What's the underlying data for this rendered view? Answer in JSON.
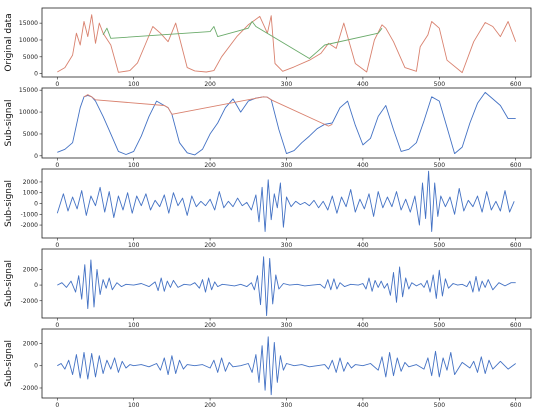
{
  "chart_data": [
    {
      "type": "line",
      "ylabel": "Original data",
      "xlim": [
        -20,
        620
      ],
      "ylim": [
        -1000,
        19500
      ],
      "xticks": [
        0,
        100,
        200,
        300,
        400,
        500,
        600
      ],
      "yticks": [
        0,
        5000,
        10000,
        15000
      ],
      "series": [
        {
          "color": "#d9826f",
          "x": [
            0,
            10,
            20,
            25,
            30,
            35,
            40,
            45,
            50,
            55,
            60,
            70,
            80,
            95,
            105,
            115,
            125,
            135,
            145,
            155,
            170,
            180,
            195,
            205,
            215,
            235,
            250,
            265,
            275,
            280,
            285,
            295,
            310,
            330,
            345,
            355,
            365,
            375,
            390,
            405,
            415,
            425,
            430,
            440,
            455,
            470,
            475,
            485,
            490,
            500,
            510,
            530,
            545,
            560,
            570,
            580,
            590,
            600
          ],
          "y": [
            500,
            1800,
            5500,
            12000,
            8500,
            15500,
            11000,
            17500,
            9000,
            15000,
            12000,
            8500,
            400,
            900,
            3200,
            8500,
            14000,
            12000,
            9500,
            15000,
            1800,
            800,
            500,
            900,
            5000,
            11000,
            14500,
            17000,
            12000,
            17200,
            3000,
            700,
            2000,
            4000,
            6000,
            9000,
            7500,
            15000,
            3000,
            500,
            10000,
            14500,
            13500,
            9500,
            1800,
            700,
            8000,
            11500,
            15500,
            13500,
            4000,
            300,
            9500,
            15200,
            14000,
            11000,
            15500,
            9500
          ]
        },
        {
          "color": "#6bab6b",
          "x": [
            60,
            65,
            70,
            200,
            205,
            210,
            250,
            255,
            260,
            330,
            340,
            350,
            420,
            425
          ],
          "y": [
            11500,
            13500,
            10500,
            12500,
            14000,
            11000,
            13500,
            15500,
            14000,
            4500,
            6500,
            8500,
            12000,
            13500
          ]
        }
      ]
    },
    {
      "type": "line",
      "ylabel": "Sub-signal",
      "xlim": [
        -20,
        620
      ],
      "ylim": [
        -500,
        15500
      ],
      "xticks": [
        0,
        100,
        200,
        300,
        400,
        500,
        600
      ],
      "yticks": [
        0,
        5000,
        10000,
        15000
      ],
      "series": [
        {
          "color": "#4472c4",
          "x": [
            0,
            10,
            20,
            30,
            35,
            40,
            45,
            50,
            60,
            70,
            80,
            90,
            100,
            110,
            120,
            130,
            140,
            145,
            150,
            160,
            170,
            180,
            190,
            200,
            210,
            220,
            230,
            240,
            250,
            260,
            270,
            275,
            280,
            290,
            300,
            310,
            320,
            330,
            340,
            350,
            360,
            370,
            380,
            390,
            400,
            410,
            420,
            430,
            440,
            450,
            460,
            470,
            480,
            490,
            500,
            510,
            520,
            530,
            540,
            550,
            560,
            570,
            580,
            590,
            600
          ],
          "y": [
            800,
            1500,
            3000,
            11000,
            13500,
            13800,
            13500,
            12500,
            9000,
            5000,
            1000,
            300,
            1000,
            4500,
            9000,
            12500,
            11500,
            11000,
            9500,
            3000,
            700,
            200,
            1500,
            5000,
            7500,
            11000,
            13000,
            10000,
            12500,
            13200,
            13500,
            13400,
            12800,
            6000,
            500,
            1200,
            3000,
            4500,
            6200,
            7200,
            7500,
            11000,
            12500,
            7000,
            2500,
            4000,
            9000,
            11500,
            6000,
            1000,
            1500,
            3000,
            8000,
            13500,
            12500,
            6500,
            500,
            2000,
            7500,
            12000,
            14500,
            13000,
            11500,
            8500,
            8500
          ]
        },
        {
          "color": "#d9826f",
          "x": [
            35,
            40,
            45,
            50,
            140,
            145,
            150,
            270,
            275,
            280,
            355,
            360
          ],
          "y": [
            13500,
            14000,
            13500,
            12800,
            11500,
            11000,
            9500,
            13500,
            13400,
            12800,
            6800,
            7200
          ]
        }
      ]
    },
    {
      "type": "line",
      "ylabel": "Sub-signal",
      "xlim": [
        -20,
        620
      ],
      "ylim": [
        -3200,
        3200
      ],
      "xticks": [
        0,
        100,
        200,
        300,
        400,
        500,
        600
      ],
      "yticks": [
        -2000,
        -1000,
        0,
        1000,
        2000
      ],
      "series": [
        {
          "color": "#4472c4",
          "x": [
            0,
            8,
            14,
            20,
            26,
            32,
            38,
            44,
            50,
            56,
            62,
            68,
            74,
            80,
            86,
            92,
            98,
            104,
            110,
            116,
            122,
            128,
            134,
            140,
            146,
            152,
            158,
            164,
            170,
            176,
            182,
            188,
            194,
            200,
            206,
            212,
            218,
            224,
            230,
            236,
            242,
            248,
            254,
            260,
            264,
            268,
            272,
            276,
            280,
            284,
            288,
            292,
            296,
            300,
            306,
            312,
            318,
            324,
            330,
            336,
            342,
            348,
            354,
            360,
            366,
            372,
            378,
            384,
            390,
            396,
            402,
            408,
            414,
            420,
            426,
            432,
            438,
            444,
            450,
            456,
            462,
            468,
            474,
            478,
            482,
            486,
            490,
            494,
            498,
            502,
            508,
            514,
            520,
            526,
            532,
            538,
            544,
            550,
            556,
            562,
            568,
            574,
            580,
            586,
            592,
            598
          ],
          "y": [
            -900,
            900,
            -700,
            600,
            -500,
            1200,
            -1100,
            700,
            -200,
            1500,
            -800,
            1100,
            -1300,
            700,
            -600,
            1000,
            -900,
            700,
            -200,
            900,
            -600,
            300,
            -300,
            800,
            -900,
            1000,
            -200,
            500,
            -1100,
            700,
            -300,
            200,
            -200,
            400,
            -600,
            1100,
            -400,
            200,
            -300,
            500,
            -200,
            100,
            -600,
            800,
            -1700,
            1500,
            -2600,
            2200,
            -1500,
            900,
            -400,
            1900,
            -2200,
            600,
            -300,
            200,
            -100,
            100,
            -200,
            300,
            -400,
            200,
            -600,
            700,
            -900,
            600,
            -300,
            1300,
            -800,
            400,
            -500,
            900,
            -1200,
            1100,
            -400,
            600,
            -300,
            1100,
            -600,
            400,
            -800,
            700,
            -2000,
            1900,
            -1400,
            3000,
            -2600,
            1900,
            -1200,
            700,
            -300,
            600,
            -1000,
            1400,
            -700,
            300,
            -300,
            700,
            -800,
            1100,
            -600,
            200,
            -700,
            1200,
            -800,
            200
          ]
        }
      ]
    },
    {
      "type": "line",
      "ylabel": "Sub-signal",
      "xlim": [
        -20,
        620
      ],
      "ylim": [
        -4200,
        4600
      ],
      "xticks": [
        0,
        100,
        200,
        300,
        400,
        500,
        600
      ],
      "yticks": [
        -2000,
        0,
        2000
      ],
      "series": [
        {
          "color": "#4472c4",
          "x": [
            0,
            6,
            12,
            18,
            24,
            28,
            32,
            36,
            40,
            44,
            48,
            52,
            56,
            60,
            64,
            68,
            72,
            78,
            84,
            90,
            100,
            110,
            120,
            128,
            132,
            136,
            140,
            144,
            148,
            152,
            158,
            166,
            174,
            180,
            186,
            190,
            194,
            198,
            202,
            206,
            210,
            216,
            224,
            232,
            240,
            248,
            254,
            258,
            262,
            266,
            270,
            274,
            278,
            282,
            286,
            290,
            296,
            304,
            314,
            324,
            334,
            344,
            350,
            354,
            358,
            362,
            366,
            370,
            376,
            384,
            394,
            400,
            404,
            408,
            412,
            416,
            420,
            424,
            428,
            432,
            436,
            440,
            444,
            448,
            452,
            456,
            460,
            464,
            470,
            476,
            480,
            484,
            488,
            492,
            496,
            500,
            504,
            508,
            512,
            518,
            524,
            530,
            536,
            540,
            544,
            548,
            552,
            556,
            560,
            564,
            570,
            578,
            586,
            594,
            600
          ],
          "y": [
            0,
            300,
            -300,
            500,
            -900,
            1200,
            -1800,
            2600,
            -3000,
            3200,
            -2800,
            2000,
            -1200,
            700,
            -400,
            900,
            -600,
            300,
            -200,
            100,
            0,
            200,
            -200,
            400,
            -700,
            900,
            -800,
            500,
            -300,
            600,
            -300,
            100,
            0,
            300,
            -400,
            700,
            -900,
            900,
            -600,
            400,
            -200,
            100,
            0,
            -100,
            100,
            -200,
            300,
            -600,
            1200,
            -2500,
            3600,
            -3900,
            3400,
            -2400,
            1300,
            -500,
            200,
            0,
            100,
            -100,
            0,
            100,
            -400,
            700,
            -600,
            800,
            -500,
            300,
            -200,
            100,
            0,
            200,
            -500,
            900,
            -800,
            600,
            -300,
            500,
            -400,
            200,
            -1300,
            1600,
            -2200,
            2300,
            -1500,
            900,
            -500,
            300,
            -100,
            200,
            -300,
            600,
            -900,
            1300,
            -1700,
            1900,
            -1400,
            800,
            -400,
            200,
            0,
            100,
            -200,
            500,
            -900,
            1100,
            -800,
            500,
            -300,
            700,
            -600,
            300,
            -100,
            300,
            300
          ]
        }
      ]
    },
    {
      "type": "line",
      "ylabel": "Sub-signal",
      "xlim": [
        -20,
        620
      ],
      "ylim": [
        -2900,
        3300
      ],
      "xticks": [
        0,
        100,
        200,
        300,
        400,
        500,
        600
      ],
      "yticks": [
        -2000,
        0,
        2000
      ],
      "series": [
        {
          "color": "#4472c4",
          "x": [
            0,
            5,
            10,
            15,
            20,
            25,
            30,
            35,
            40,
            45,
            50,
            55,
            60,
            65,
            70,
            75,
            80,
            85,
            90,
            95,
            100,
            110,
            120,
            130,
            135,
            140,
            145,
            150,
            155,
            160,
            165,
            170,
            180,
            190,
            200,
            205,
            210,
            215,
            220,
            225,
            230,
            240,
            250,
            255,
            260,
            264,
            268,
            272,
            276,
            280,
            284,
            288,
            292,
            296,
            300,
            310,
            320,
            330,
            340,
            350,
            355,
            360,
            365,
            370,
            375,
            380,
            385,
            390,
            400,
            410,
            420,
            425,
            430,
            435,
            440,
            445,
            450,
            455,
            460,
            470,
            480,
            485,
            490,
            495,
            500,
            505,
            510,
            515,
            520,
            530,
            540,
            545,
            550,
            555,
            560,
            565,
            570,
            580,
            590,
            600
          ],
          "y": [
            0,
            200,
            -300,
            500,
            -800,
            1000,
            -1100,
            1200,
            -1200,
            1100,
            -1000,
            900,
            -700,
            500,
            -300,
            700,
            -600,
            400,
            -200,
            100,
            0,
            100,
            -100,
            200,
            -400,
            700,
            -800,
            900,
            -700,
            500,
            -300,
            100,
            0,
            100,
            -200,
            500,
            -600,
            700,
            -500,
            300,
            -100,
            0,
            200,
            -600,
            1000,
            -1500,
            1800,
            -2200,
            2600,
            -2600,
            2100,
            -1500,
            900,
            -400,
            200,
            0,
            100,
            -100,
            0,
            100,
            -300,
            500,
            -600,
            700,
            -500,
            300,
            -200,
            100,
            0,
            200,
            -400,
            800,
            -1000,
            1200,
            -900,
            700,
            -500,
            300,
            -100,
            100,
            -300,
            700,
            -900,
            1300,
            -1000,
            700,
            -400,
            1200,
            -800,
            300,
            -200,
            400,
            -600,
            800,
            -700,
            500,
            -300,
            400,
            -300,
            200
          ]
        }
      ]
    }
  ]
}
